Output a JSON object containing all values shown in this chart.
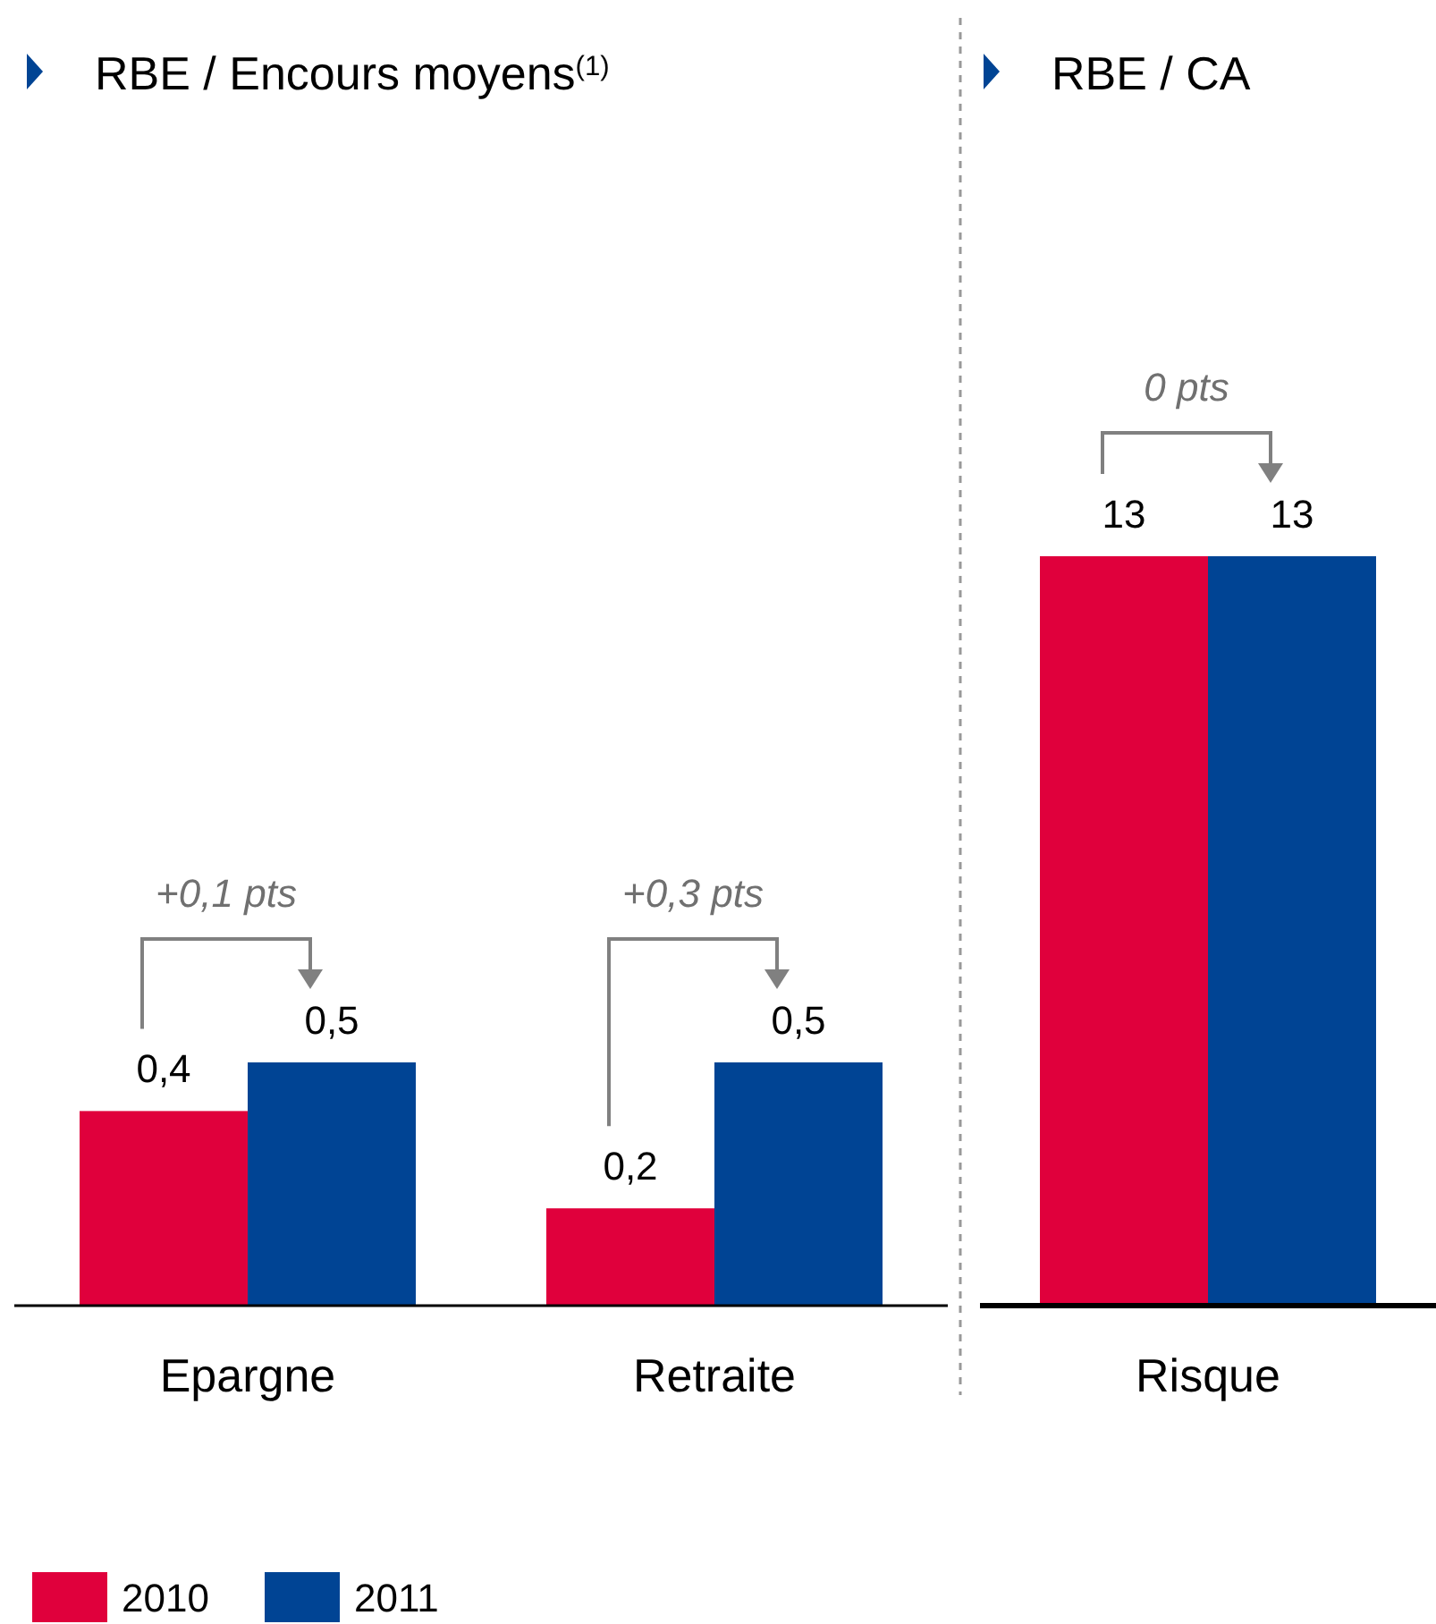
{
  "chart_data": [
    {
      "type": "bar",
      "title": "RBE / Encours moyens$^{(1)}$",
      "categories": [
        "Epargne",
        "Retraite"
      ],
      "series": [
        {
          "name": "2010",
          "color": "#e0003c",
          "values": [
            0.4,
            0.2
          ],
          "value_labels": [
            "0,4",
            "0,2"
          ]
        },
        {
          "name": "2011",
          "color": "#004494",
          "values": [
            0.5,
            0.5
          ],
          "value_labels": [
            "0,5",
            "0,5"
          ]
        }
      ],
      "annotations": [
        "+0,1 pts",
        "+0,3 pts"
      ],
      "legend": "bottom left"
    },
    {
      "type": "bar",
      "title": "RBE / CA",
      "categories": [
        "Risque"
      ],
      "series": [
        {
          "color": "#e0003c",
          "values": [
            13
          ],
          "value_labels": [
            "13"
          ]
        },
        {
          "color": "#004494",
          "values": [
            13
          ],
          "value_labels": [
            "13"
          ]
        }
      ],
      "annotations": [
        "0 pts"
      ]
    }
  ]
}
